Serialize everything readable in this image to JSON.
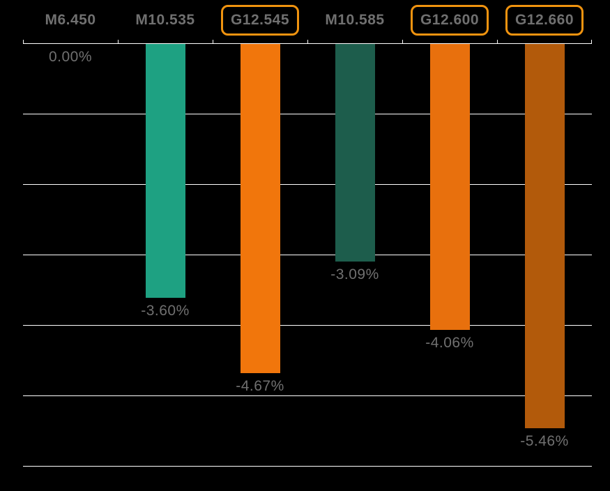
{
  "chart_data": {
    "type": "bar",
    "title": "",
    "xlabel": "",
    "ylabel": "",
    "axis_format": "percent",
    "categories": [
      "M6.450",
      "M10.535",
      "G12.545",
      "M10.585",
      "G12.600",
      "G12.660"
    ],
    "values": [
      0.0,
      -3.6,
      -4.67,
      -3.09,
      -4.06,
      -5.46
    ],
    "data_labels": [
      "0.00%",
      "-3.60%",
      "-4.67%",
      "-3.09%",
      "-4.06%",
      "-5.46%"
    ],
    "bar_colors": [
      "#1EA182",
      "#1EA182",
      "#F1760C",
      "#1D5D4C",
      "#E8700D",
      "#B25A0B"
    ],
    "highlighted": [
      false,
      false,
      true,
      false,
      true,
      true
    ],
    "ylim": [
      -6,
      0
    ],
    "gridline_step": 1,
    "grid": true,
    "legend": "none"
  },
  "colors": {
    "background": "#000000",
    "gridline": "#FFFFFF",
    "text": "#707070",
    "highlight_border": "#F0930F"
  }
}
